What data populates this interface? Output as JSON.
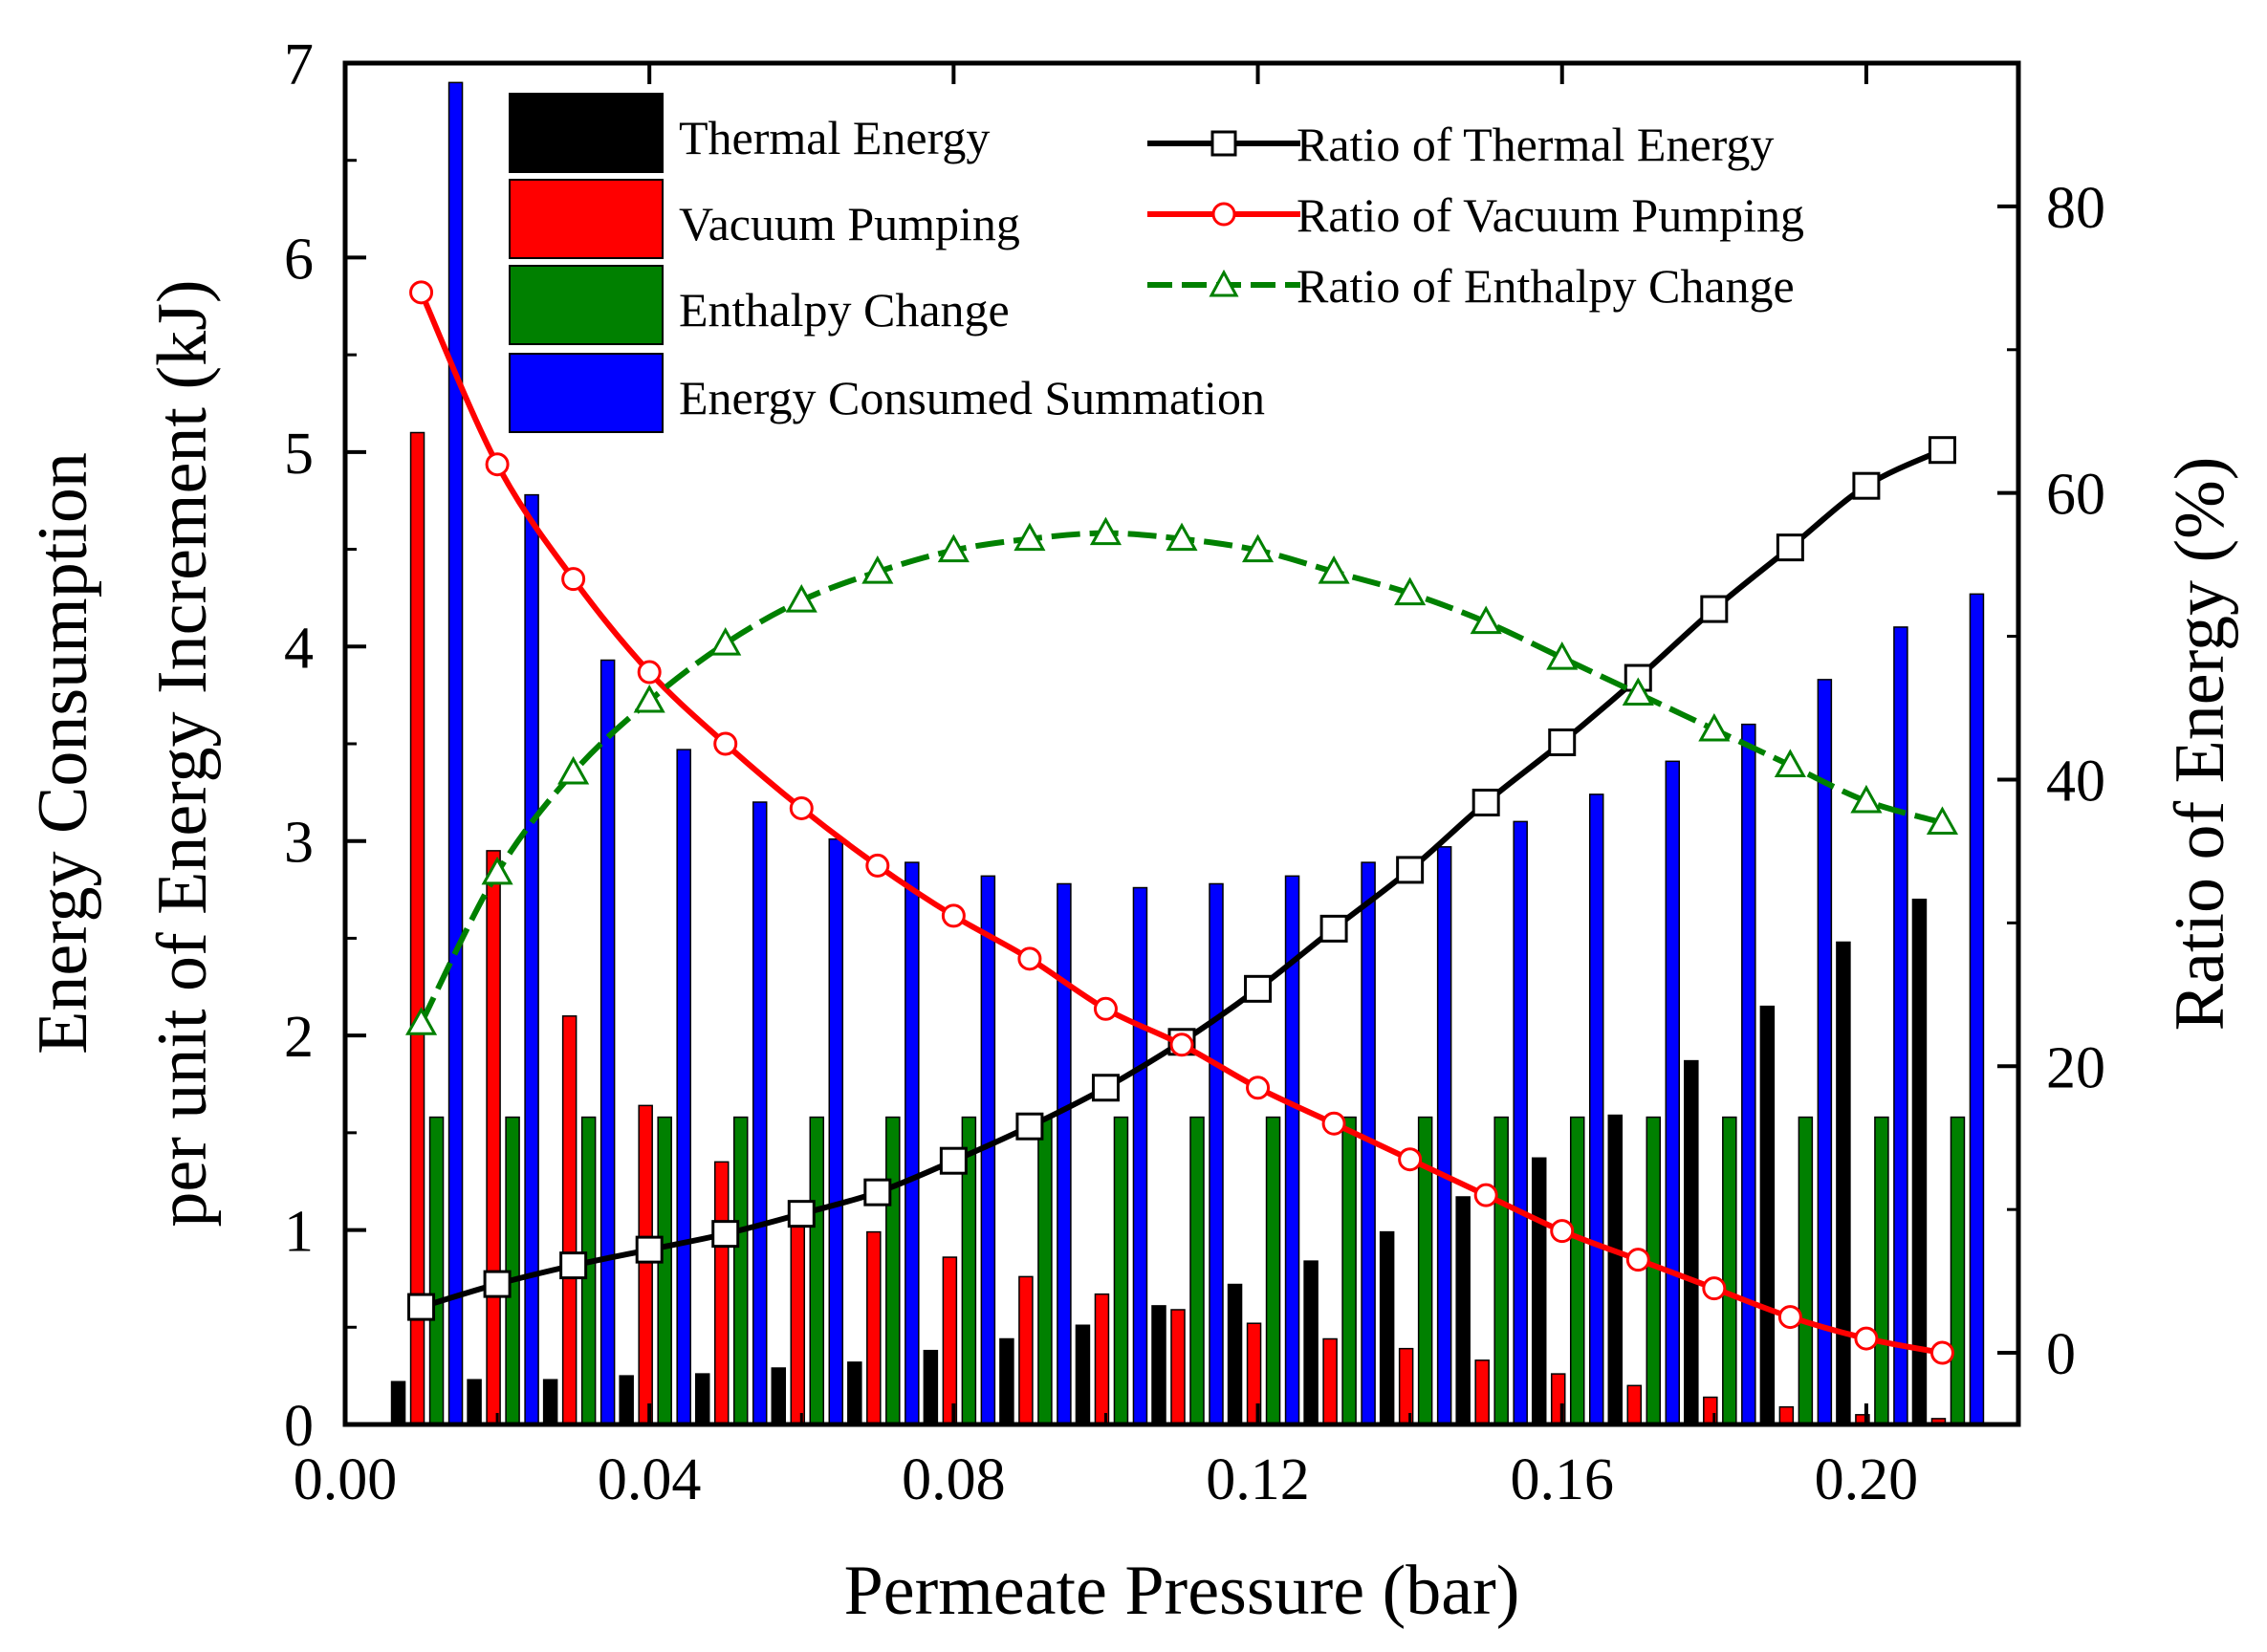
{
  "chart_data": {
    "type": "bar+line",
    "xlabel": "Permeate Pressure (bar)",
    "ylabel_left": [
      "Energy Consumption",
      "per unit of Energy Increment (kJ)"
    ],
    "ylabel_right": "Ratio of Energy (%)",
    "xlim": [
      0.0,
      0.22
    ],
    "ylim_left": [
      0,
      7
    ],
    "ylim_right": [
      -5,
      90
    ],
    "x_ticks": [
      "0.00",
      "0.04",
      "0.08",
      "0.12",
      "0.16",
      "0.20"
    ],
    "left_ticks": [
      "0",
      "1",
      "2",
      "3",
      "4",
      "5",
      "6",
      "7"
    ],
    "right_ticks": [
      "0",
      "20",
      "40",
      "60",
      "80"
    ],
    "x": [
      0.01,
      0.02,
      0.03,
      0.04,
      0.05,
      0.06,
      0.07,
      0.08,
      0.09,
      0.1,
      0.11,
      0.12,
      0.13,
      0.14,
      0.15,
      0.16,
      0.17,
      0.18,
      0.19,
      0.2,
      0.21
    ],
    "bar_series": [
      {
        "name": "Thermal Energy",
        "color": "#000000",
        "values": [
          0.22,
          0.23,
          0.23,
          0.25,
          0.26,
          0.29,
          0.32,
          0.38,
          0.44,
          0.51,
          0.61,
          0.72,
          0.84,
          0.99,
          1.17,
          1.37,
          1.59,
          1.87,
          2.15,
          2.48,
          2.7
        ]
      },
      {
        "name": "Vacuum Pumping",
        "color": "#ff0000",
        "values": [
          5.1,
          2.95,
          2.1,
          1.64,
          1.35,
          1.14,
          0.99,
          0.86,
          0.76,
          0.67,
          0.59,
          0.52,
          0.44,
          0.39,
          0.33,
          0.26,
          0.2,
          0.14,
          0.09,
          0.05,
          0.03
        ]
      },
      {
        "name": "Enthalpy Change",
        "color": "#008000",
        "values": [
          1.58,
          1.58,
          1.58,
          1.58,
          1.58,
          1.58,
          1.58,
          1.58,
          1.58,
          1.58,
          1.58,
          1.58,
          1.58,
          1.58,
          1.58,
          1.58,
          1.58,
          1.58,
          1.58,
          1.58,
          1.58
        ]
      },
      {
        "name": "Energy Consumed Summation",
        "color": "#0000ff",
        "values": [
          6.9,
          4.78,
          3.93,
          3.47,
          3.2,
          3.01,
          2.89,
          2.82,
          2.78,
          2.76,
          2.78,
          2.82,
          2.89,
          2.97,
          3.1,
          3.24,
          3.41,
          3.6,
          3.83,
          4.1,
          4.27
        ]
      }
    ],
    "line_series": [
      {
        "name": "Ratio of Thermal Energy",
        "color": "#000000",
        "marker": "square",
        "dash": "solid",
        "values": [
          3.2,
          4.8,
          6.1,
          7.2,
          8.3,
          9.7,
          11.2,
          13.4,
          15.8,
          18.5,
          21.7,
          25.4,
          29.6,
          33.7,
          38.4,
          42.6,
          47.1,
          51.9,
          56.2,
          60.5,
          63.0
        ]
      },
      {
        "name": "Ratio of Vacuum Pumping",
        "color": "#ff0000",
        "marker": "circle",
        "dash": "solid",
        "values": [
          74.0,
          62.0,
          54.0,
          47.5,
          42.5,
          38.0,
          34.0,
          30.5,
          27.5,
          24.0,
          21.5,
          18.5,
          16.0,
          13.5,
          11.0,
          8.5,
          6.5,
          4.5,
          2.5,
          1.0,
          0.0
        ]
      },
      {
        "name": "Ratio of Enthalpy Change",
        "color": "#008000",
        "marker": "triangle",
        "dash": "dashed",
        "values": [
          23.0,
          33.5,
          40.5,
          45.5,
          49.5,
          52.5,
          54.5,
          56.0,
          56.8,
          57.2,
          56.8,
          56.0,
          54.5,
          53.0,
          51.0,
          48.5,
          46.0,
          43.5,
          41.0,
          38.5,
          37.0
        ]
      }
    ]
  }
}
